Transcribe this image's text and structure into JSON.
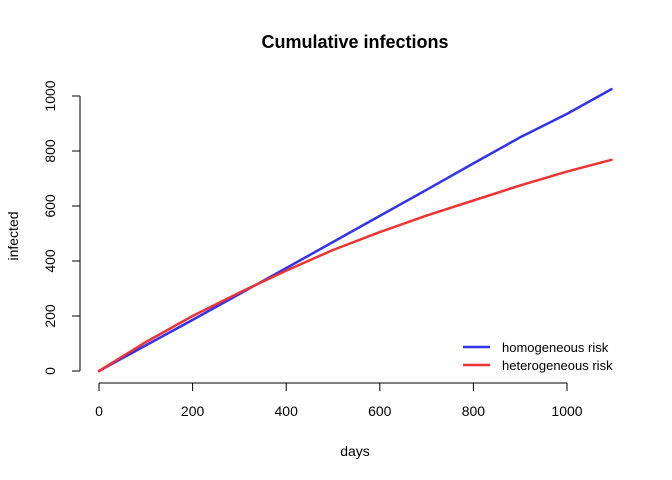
{
  "chart_data": {
    "type": "line",
    "title": "Cumulative infections",
    "xlabel": "days",
    "ylabel": "infected",
    "xlim": [
      0,
      1100
    ],
    "ylim": [
      0,
      1025
    ],
    "x_ticks": [
      0,
      200,
      400,
      600,
      800,
      1000
    ],
    "y_ticks": [
      0,
      200,
      400,
      600,
      800,
      1000
    ],
    "grid": false,
    "legend_position": "bottom-right",
    "series": [
      {
        "name": "homogeneous risk",
        "color": "#3333ee",
        "x": [
          0,
          100,
          200,
          300,
          400,
          500,
          600,
          700,
          800,
          900,
          1000,
          1095
        ],
        "y": [
          0,
          93,
          186,
          280,
          374,
          469,
          564,
          659,
          755,
          850,
          935,
          1025
        ]
      },
      {
        "name": "heterogeneous risk",
        "color": "#ee3333",
        "x": [
          0,
          100,
          200,
          300,
          400,
          500,
          600,
          700,
          800,
          900,
          1000,
          1095
        ],
        "y": [
          0,
          105,
          200,
          285,
          365,
          440,
          505,
          565,
          620,
          675,
          725,
          768
        ]
      }
    ]
  }
}
